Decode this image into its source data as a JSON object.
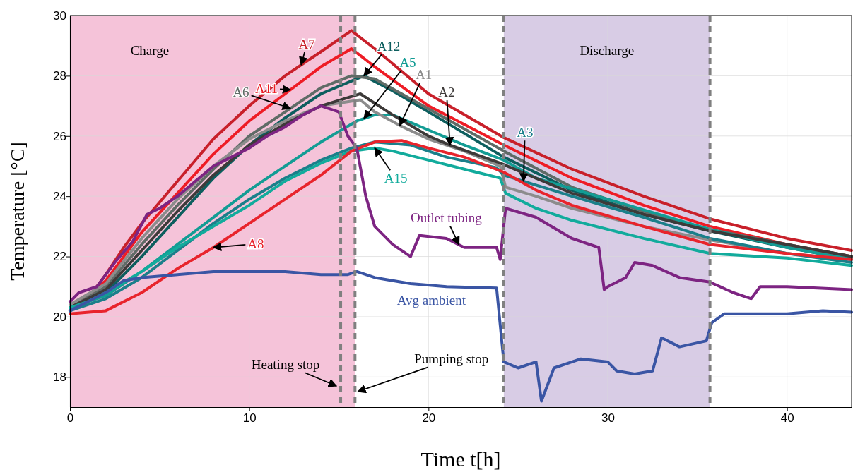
{
  "chart_data": {
    "type": "line",
    "xlabel": "Time t[h]",
    "ylabel": "Temperature [°C]",
    "xlim": [
      0,
      43.6
    ],
    "ylim": [
      17,
      30
    ],
    "xticks": [
      0,
      10,
      20,
      30,
      40
    ],
    "yticks": [
      18,
      20,
      22,
      24,
      26,
      28,
      30
    ],
    "grid": true,
    "legend": false,
    "marker": "none",
    "line_style": "solid",
    "bands": [
      {
        "axis": "x",
        "from": 0,
        "to": 15.9,
        "label": "Charge",
        "color": "#f5c3d9"
      },
      {
        "axis": "x",
        "from": 24.2,
        "to": 35.7,
        "label": "Discharge",
        "color": "#d8cce5"
      }
    ],
    "ref_lines": [
      {
        "axis": "x",
        "value": 15.1,
        "label": "Heating stop",
        "color": "#808080",
        "line_style": "dashed"
      },
      {
        "axis": "x",
        "value": 15.9,
        "label": "Pumping stop",
        "color": "#808080",
        "line_style": "dashed"
      },
      {
        "axis": "x",
        "value": 24.2,
        "label": null,
        "color": "#808080",
        "line_style": "dashed"
      },
      {
        "axis": "x",
        "value": 35.7,
        "label": null,
        "color": "#808080",
        "line_style": "dashed"
      }
    ],
    "series": [
      {
        "name": "A7",
        "color": "#c8202a",
        "x": [
          0,
          1,
          2,
          3,
          4,
          5,
          6,
          8,
          10,
          12,
          14,
          15.7,
          17,
          20,
          24.2,
          28,
          32,
          35.7,
          40,
          43.6
        ],
        "values": [
          20.3,
          20.6,
          21.4,
          22.3,
          23.1,
          23.8,
          24.5,
          25.9,
          27.0,
          28.0,
          28.8,
          29.5,
          28.9,
          27.4,
          25.95,
          24.9,
          24.0,
          23.25,
          22.6,
          22.2
        ]
      },
      {
        "name": "A11",
        "color": "#ee1c25",
        "x": [
          0,
          2,
          4,
          6,
          8,
          10,
          12,
          14,
          15.7,
          17,
          20,
          24.2,
          28,
          32,
          35.7,
          40,
          43.6
        ],
        "values": [
          20.2,
          21.2,
          22.8,
          24.1,
          25.4,
          26.5,
          27.4,
          28.3,
          28.9,
          28.3,
          27.0,
          25.7,
          24.6,
          23.7,
          23.0,
          22.4,
          22.0
        ]
      },
      {
        "name": "A12",
        "color": "#0d5e5e",
        "x": [
          0,
          2,
          4,
          6,
          8,
          10,
          12,
          14,
          16.4,
          18,
          20,
          24.2,
          28,
          32,
          35.7,
          40,
          43.6
        ],
        "values": [
          20.2,
          20.8,
          22.0,
          23.3,
          24.6,
          25.7,
          26.6,
          27.4,
          28.0,
          27.5,
          26.8,
          25.3,
          24.2,
          23.4,
          22.85,
          22.3,
          21.9
        ]
      },
      {
        "name": "A6",
        "color": "#5f6b66",
        "x": [
          0,
          2,
          4,
          6,
          8,
          10,
          12,
          14,
          15.7,
          17,
          20,
          24.2,
          28,
          32,
          35.7,
          40,
          43.6
        ],
        "values": [
          20.3,
          21.0,
          22.4,
          23.7,
          24.9,
          26.0,
          26.8,
          27.6,
          28.0,
          27.9,
          26.9,
          25.5,
          24.3,
          23.5,
          22.9,
          22.4,
          22.0
        ]
      },
      {
        "name": "A5",
        "color": "#139c94",
        "x": [
          0,
          2,
          4,
          6,
          8,
          10,
          12,
          14,
          16,
          17,
          18,
          20,
          22,
          24.2,
          26,
          30,
          35.7,
          40,
          43.6
        ],
        "values": [
          20.3,
          20.7,
          21.5,
          22.4,
          23.3,
          24.2,
          25.0,
          25.8,
          26.5,
          26.7,
          26.7,
          26.2,
          25.7,
          25.2,
          24.6,
          23.9,
          22.9,
          22.3,
          21.9
        ]
      },
      {
        "name": "A1",
        "color": "#8c8c8c",
        "x": [
          0,
          2,
          4,
          6,
          8,
          10,
          12,
          14,
          16.2,
          17,
          18.4,
          20,
          22,
          24,
          24.3,
          26,
          28,
          32,
          35.7,
          40,
          43.6
        ],
        "values": [
          20.4,
          21.1,
          22.6,
          23.9,
          25.0,
          25.9,
          26.5,
          27.0,
          27.2,
          26.8,
          26.35,
          25.9,
          25.5,
          25.0,
          24.3,
          24.0,
          23.6,
          23.0,
          22.55,
          22.1,
          21.9
        ]
      },
      {
        "name": "A2",
        "color": "#3d3a39",
        "x": [
          0,
          2,
          4,
          6,
          8,
          10,
          12,
          14,
          16.2,
          18,
          20,
          21.2,
          24,
          26,
          28,
          32,
          35.7,
          40,
          43.6
        ],
        "values": [
          20.3,
          20.9,
          22.2,
          23.5,
          24.7,
          25.7,
          26.4,
          27.0,
          27.4,
          26.7,
          26.0,
          25.7,
          25.1,
          24.6,
          24.1,
          23.4,
          22.85,
          22.4,
          22.0
        ]
      },
      {
        "name": "A3",
        "color": "#1b7f8a",
        "x": [
          0,
          2,
          4,
          6,
          8,
          10,
          12,
          14,
          15.7,
          17,
          19,
          21,
          23.8,
          24.2,
          25.3,
          28,
          32,
          35.7,
          40,
          43.6
        ],
        "values": [
          20.2,
          20.6,
          21.3,
          22.2,
          23.1,
          23.9,
          24.6,
          25.2,
          25.6,
          25.8,
          25.7,
          25.3,
          24.95,
          24.7,
          24.5,
          24.0,
          23.3,
          22.6,
          22.1,
          21.8
        ]
      },
      {
        "name": "A15",
        "color": "#12ab9c",
        "x": [
          0,
          1,
          2,
          4,
          6,
          8,
          10,
          12,
          14,
          15.7,
          17,
          18,
          20,
          22,
          24,
          24.3,
          26,
          28,
          32,
          35.7,
          40,
          43.6
        ],
        "values": [
          20.3,
          20.5,
          20.8,
          21.5,
          22.3,
          23.0,
          23.7,
          24.5,
          25.1,
          25.5,
          25.6,
          25.5,
          25.2,
          24.9,
          24.6,
          24.1,
          23.6,
          23.2,
          22.6,
          22.1,
          21.95,
          21.7
        ]
      },
      {
        "name": "A8",
        "color": "#e8242c",
        "x": [
          0,
          2,
          4,
          6,
          8,
          10,
          12,
          14,
          15.7,
          17,
          18.5,
          20,
          22,
          24.2,
          26,
          28,
          32,
          35.7,
          40,
          43.6
        ],
        "values": [
          20.1,
          20.2,
          20.8,
          21.6,
          22.3,
          23.1,
          23.9,
          24.7,
          25.5,
          25.8,
          25.85,
          25.6,
          25.3,
          24.8,
          24.2,
          23.7,
          23.0,
          22.4,
          22.1,
          21.9
        ]
      },
      {
        "name": "Outlet tubing",
        "color": "#7d2482",
        "x": [
          0,
          0.5,
          1.5,
          2.5,
          3.5,
          4.3,
          5,
          6,
          7,
          8,
          9,
          10,
          11,
          12,
          13,
          14,
          15,
          15.5,
          16,
          16.5,
          17,
          18,
          19,
          19.5,
          21,
          22,
          23.8,
          24,
          24.3,
          26,
          28,
          29.5,
          29.8,
          30,
          31,
          31.5,
          32.5,
          34,
          35.7,
          37,
          38,
          38.5,
          40,
          43.6
        ],
        "values": [
          20.5,
          20.8,
          21.0,
          21.8,
          22.5,
          23.4,
          23.6,
          24.0,
          24.5,
          25.0,
          25.3,
          25.6,
          26.0,
          26.3,
          26.7,
          27.0,
          26.8,
          26.0,
          25.6,
          24.0,
          23.0,
          22.4,
          22.0,
          22.7,
          22.6,
          22.3,
          22.3,
          21.9,
          23.6,
          23.3,
          22.6,
          22.3,
          20.9,
          21.0,
          21.3,
          21.8,
          21.7,
          21.3,
          21.15,
          20.8,
          20.6,
          21.0,
          21.0,
          20.9
        ]
      },
      {
        "name": "Avg ambient",
        "color": "#3a55a4",
        "x": [
          0,
          1,
          2,
          3,
          4,
          6,
          8,
          10,
          12,
          14,
          15.5,
          16,
          17,
          19,
          21,
          23.8,
          24.2,
          25,
          26,
          26.3,
          27,
          28.5,
          30,
          30.5,
          31.5,
          32.5,
          33,
          34,
          35.5,
          35.8,
          36.5,
          38,
          40,
          42,
          43.6
        ],
        "values": [
          20.2,
          20.5,
          20.8,
          21.2,
          21.3,
          21.4,
          21.5,
          21.5,
          21.5,
          21.4,
          21.4,
          21.5,
          21.3,
          21.1,
          21.0,
          20.95,
          18.5,
          18.3,
          18.5,
          17.2,
          18.3,
          18.6,
          18.5,
          18.2,
          18.1,
          18.2,
          19.3,
          19.0,
          19.2,
          19.8,
          20.1,
          20.1,
          20.1,
          20.2,
          20.15
        ]
      }
    ]
  }
}
